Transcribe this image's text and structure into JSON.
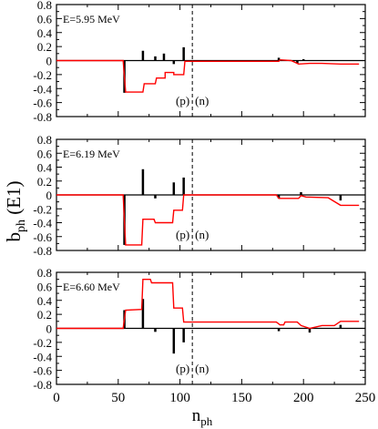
{
  "chart_data": {
    "type": "line",
    "xlabel": {
      "main": "n",
      "sub": "ph"
    },
    "ylabel": {
      "main": "b",
      "sub": "ph",
      "suffix": " (E1)"
    },
    "xlim": [
      0,
      250
    ],
    "ylim": [
      -0.8,
      0.8
    ],
    "x_ticks": [
      0,
      50,
      100,
      150,
      200,
      250
    ],
    "y_ticks": [
      -0.8,
      -0.6,
      -0.4,
      -0.2,
      0,
      0.2,
      0.4,
      0.6,
      0.8
    ],
    "divider_x": 110,
    "proton_label": "(p)",
    "neutron_label": "(n)",
    "colors": {
      "bars": "#000000",
      "cumulative": "#ff0000",
      "axis": "#000000"
    },
    "panels": [
      {
        "energy_label": "E=5.95 MeV",
        "bars": [
          {
            "x": 55,
            "y": -0.46
          },
          {
            "x": 70,
            "y": 0.14
          },
          {
            "x": 80,
            "y": 0.06
          },
          {
            "x": 87,
            "y": 0.1
          },
          {
            "x": 95,
            "y": -0.05
          },
          {
            "x": 103,
            "y": 0.19
          },
          {
            "x": 180,
            "y": 0.04
          },
          {
            "x": 195,
            "y": -0.04
          },
          {
            "x": 200,
            "y": 0.02
          }
        ],
        "cumulative": [
          {
            "x": 0,
            "y": 0
          },
          {
            "x": 54,
            "y": 0
          },
          {
            "x": 56,
            "y": -0.45
          },
          {
            "x": 70,
            "y": -0.45
          },
          {
            "x": 71,
            "y": -0.33
          },
          {
            "x": 80,
            "y": -0.33
          },
          {
            "x": 81,
            "y": -0.25
          },
          {
            "x": 88,
            "y": -0.25
          },
          {
            "x": 88,
            "y": -0.17
          },
          {
            "x": 95,
            "y": -0.17
          },
          {
            "x": 95,
            "y": -0.2
          },
          {
            "x": 103,
            "y": -0.2
          },
          {
            "x": 104,
            "y": -0.01
          },
          {
            "x": 180,
            "y": -0.01
          },
          {
            "x": 181,
            "y": 0.01
          },
          {
            "x": 190,
            "y": 0
          },
          {
            "x": 196,
            "y": -0.05
          },
          {
            "x": 205,
            "y": -0.04
          },
          {
            "x": 215,
            "y": -0.04
          },
          {
            "x": 230,
            "y": -0.05
          },
          {
            "x": 245,
            "y": -0.05
          }
        ]
      },
      {
        "energy_label": "E=6.19 MeV",
        "bars": [
          {
            "x": 55,
            "y": -0.72
          },
          {
            "x": 70,
            "y": 0.37
          },
          {
            "x": 80,
            "y": -0.05
          },
          {
            "x": 95,
            "y": 0.18
          },
          {
            "x": 103,
            "y": 0.25
          },
          {
            "x": 180,
            "y": -0.05
          },
          {
            "x": 198,
            "y": 0.04
          },
          {
            "x": 230,
            "y": -0.08
          }
        ],
        "cumulative": [
          {
            "x": 0,
            "y": 0
          },
          {
            "x": 54,
            "y": 0
          },
          {
            "x": 56,
            "y": -0.72
          },
          {
            "x": 69,
            "y": -0.72
          },
          {
            "x": 70,
            "y": -0.35
          },
          {
            "x": 79,
            "y": -0.35
          },
          {
            "x": 80,
            "y": -0.4
          },
          {
            "x": 94,
            "y": -0.4
          },
          {
            "x": 95,
            "y": -0.22
          },
          {
            "x": 102,
            "y": -0.22
          },
          {
            "x": 103,
            "y": 0
          },
          {
            "x": 178,
            "y": 0
          },
          {
            "x": 180,
            "y": -0.05
          },
          {
            "x": 196,
            "y": -0.05
          },
          {
            "x": 198,
            "y": -0.01
          },
          {
            "x": 202,
            "y": -0.03
          },
          {
            "x": 220,
            "y": -0.04
          },
          {
            "x": 230,
            "y": -0.15
          },
          {
            "x": 245,
            "y": -0.15
          }
        ]
      },
      {
        "energy_label": "E=6.60 MeV",
        "bars": [
          {
            "x": 55,
            "y": 0.26
          },
          {
            "x": 70,
            "y": 0.42
          },
          {
            "x": 80,
            "y": -0.05
          },
          {
            "x": 95,
            "y": -0.36
          },
          {
            "x": 103,
            "y": -0.2
          },
          {
            "x": 180,
            "y": -0.04
          },
          {
            "x": 205,
            "y": -0.06
          },
          {
            "x": 230,
            "y": 0.05
          }
        ],
        "cumulative": [
          {
            "x": 0,
            "y": 0
          },
          {
            "x": 54,
            "y": 0
          },
          {
            "x": 56,
            "y": 0.26
          },
          {
            "x": 69,
            "y": 0.27
          },
          {
            "x": 70,
            "y": 0.7
          },
          {
            "x": 76,
            "y": 0.7
          },
          {
            "x": 77,
            "y": 0.65
          },
          {
            "x": 94,
            "y": 0.65
          },
          {
            "x": 95,
            "y": 0.29
          },
          {
            "x": 102,
            "y": 0.29
          },
          {
            "x": 103,
            "y": 0.09
          },
          {
            "x": 178,
            "y": 0.09
          },
          {
            "x": 181,
            "y": 0.05
          },
          {
            "x": 184,
            "y": 0.05
          },
          {
            "x": 185,
            "y": 0.09
          },
          {
            "x": 195,
            "y": 0.09
          },
          {
            "x": 198,
            "y": 0.04
          },
          {
            "x": 205,
            "y": 0.0
          },
          {
            "x": 215,
            "y": 0.04
          },
          {
            "x": 225,
            "y": 0.04
          },
          {
            "x": 230,
            "y": 0.1
          },
          {
            "x": 245,
            "y": 0.1
          }
        ]
      }
    ]
  }
}
